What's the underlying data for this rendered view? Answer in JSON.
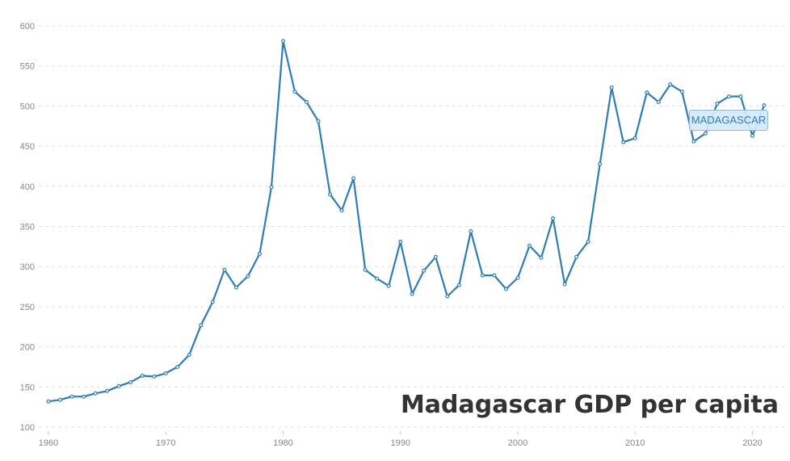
{
  "chart_data": {
    "type": "line",
    "title": "Madagascar GDP per capita",
    "series_label": "MADAGASCAR",
    "xlabel": "",
    "ylabel": "",
    "xlim": [
      1960,
      2021
    ],
    "ylim": [
      100,
      600
    ],
    "x_ticks": [
      1960,
      1970,
      1980,
      1990,
      2000,
      2010,
      2020
    ],
    "y_ticks": [
      100,
      150,
      200,
      250,
      300,
      350,
      400,
      450,
      500,
      550,
      600
    ],
    "grid": "horizontal-dashed",
    "line_color": "#2e7db5",
    "series": [
      {
        "name": "MADAGASCAR",
        "x": [
          1960,
          1961,
          1962,
          1963,
          1964,
          1965,
          1966,
          1967,
          1968,
          1969,
          1970,
          1971,
          1972,
          1973,
          1974,
          1975,
          1976,
          1977,
          1978,
          1979,
          1980,
          1981,
          1982,
          1983,
          1984,
          1985,
          1986,
          1987,
          1988,
          1989,
          1990,
          1991,
          1992,
          1993,
          1994,
          1995,
          1996,
          1997,
          1998,
          1999,
          2000,
          2001,
          2002,
          2003,
          2004,
          2005,
          2006,
          2007,
          2008,
          2009,
          2010,
          2011,
          2012,
          2013,
          2014,
          2015,
          2016,
          2017,
          2018,
          2019,
          2020,
          2021
        ],
        "values": [
          132,
          134,
          138,
          138,
          142,
          145,
          151,
          156,
          164,
          163,
          167,
          175,
          190,
          227,
          256,
          296,
          274,
          288,
          316,
          399,
          581,
          518,
          505,
          481,
          390,
          370,
          410,
          296,
          285,
          276,
          331,
          266,
          295,
          312,
          263,
          277,
          344,
          289,
          289,
          272,
          286,
          326,
          311,
          360,
          278,
          312,
          331,
          428,
          523,
          455,
          460,
          517,
          505,
          527,
          518,
          456,
          466,
          503,
          512,
          512,
          463,
          501
        ]
      }
    ]
  }
}
